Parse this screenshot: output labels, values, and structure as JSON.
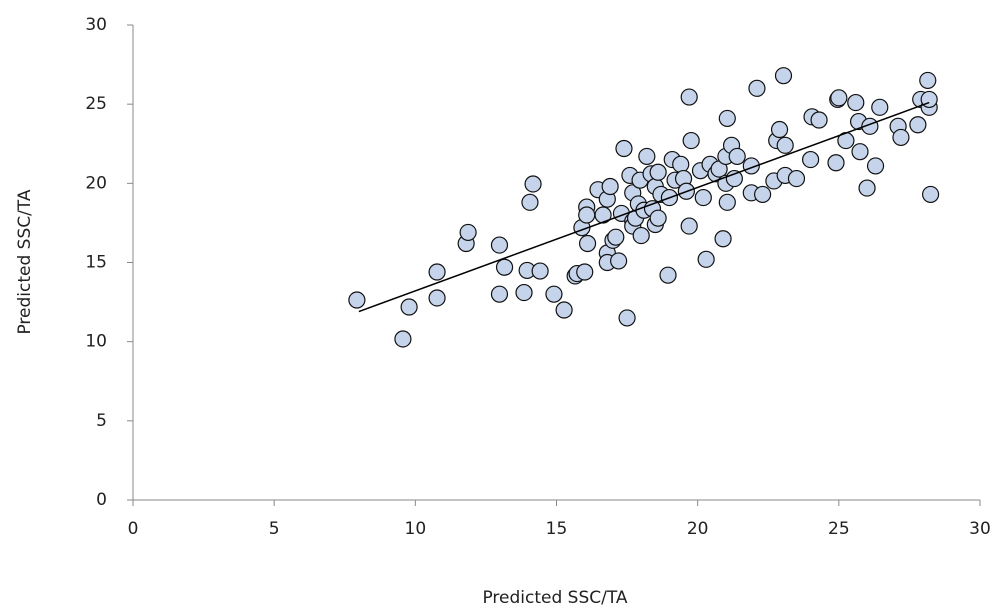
{
  "chart_data": {
    "type": "scatter",
    "xlabel": "Predicted SSC/TA",
    "ylabel": "Predicted SSC/TA",
    "xlim": [
      0,
      30
    ],
    "ylim": [
      0,
      30
    ],
    "xticks": [
      0,
      5,
      10,
      15,
      20,
      25,
      30
    ],
    "yticks": [
      0,
      5,
      10,
      15,
      20,
      25,
      30
    ],
    "series": [
      {
        "color": "#c5d4ea",
        "x": [
          7.93,
          9.56,
          9.78,
          10.77,
          10.77,
          11.8,
          11.87,
          12.98,
          12.98,
          13.16,
          13.85,
          13.96,
          14.06,
          14.17,
          14.42,
          14.91,
          15.27,
          15.66,
          15.73,
          16.0,
          15.9,
          16.07,
          16.1,
          16.07,
          16.47,
          16.65,
          16.8,
          16.8,
          16.8,
          16.9,
          17.0,
          17.1,
          17.2,
          17.39,
          17.3,
          17.5,
          17.6,
          17.7,
          17.7,
          17.7,
          17.8,
          17.9,
          17.96,
          18.0,
          18.1,
          18.2,
          18.35,
          18.4,
          18.5,
          18.6,
          18.5,
          18.6,
          18.7,
          18.95,
          19.0,
          19.1,
          19.2,
          19.4,
          19.5,
          19.6,
          19.7,
          19.7,
          19.77,
          20.1,
          20.2,
          20.3,
          20.44,
          20.65,
          20.76,
          20.9,
          21.0,
          21.0,
          21.05,
          21.05,
          21.2,
          21.3,
          21.4,
          21.9,
          21.9,
          22.1,
          22.3,
          22.7,
          22.8,
          22.9,
          23.04,
          23.1,
          23.1,
          23.5,
          24.0,
          24.05,
          24.3,
          24.9,
          24.96,
          25.0,
          25.25,
          25.6,
          25.7,
          25.75,
          26.0,
          26.1,
          26.3,
          26.45,
          27.1,
          27.2,
          27.8,
          27.9,
          28.2,
          28.15,
          28.2,
          28.25
        ],
        "values": [
          12.63,
          10.17,
          12.19,
          14.4,
          12.76,
          16.2,
          16.9,
          16.1,
          13.0,
          14.7,
          13.1,
          14.5,
          18.8,
          19.96,
          14.46,
          13.0,
          12.0,
          14.15,
          14.3,
          14.4,
          17.2,
          18.5,
          16.2,
          18.0,
          19.6,
          18.0,
          19.0,
          15.6,
          15.0,
          19.8,
          16.4,
          16.6,
          15.1,
          22.2,
          18.1,
          11.5,
          20.5,
          19.4,
          17.6,
          17.3,
          17.8,
          18.7,
          20.2,
          16.7,
          18.3,
          21.7,
          20.6,
          18.4,
          19.8,
          20.7,
          17.4,
          17.8,
          19.3,
          14.2,
          19.1,
          21.5,
          20.2,
          21.2,
          20.3,
          19.5,
          25.45,
          17.3,
          22.7,
          20.8,
          19.1,
          15.2,
          21.2,
          20.6,
          20.9,
          16.5,
          20.0,
          21.7,
          18.8,
          24.1,
          22.4,
          20.3,
          21.7,
          21.1,
          19.4,
          26.0,
          19.3,
          20.15,
          22.7,
          23.4,
          26.8,
          22.4,
          20.5,
          20.3,
          21.5,
          24.2,
          24.0,
          21.3,
          25.3,
          25.4,
          22.7,
          25.1,
          23.9,
          22.0,
          19.7,
          23.6,
          21.1,
          24.8,
          23.6,
          22.9,
          23.7,
          25.3,
          24.8,
          26.5,
          25.3,
          19.3
        ]
      }
    ],
    "trendline": {
      "color": "#000000",
      "x": [
        8,
        28.2
      ],
      "values": [
        11.9,
        25.1
      ]
    }
  }
}
